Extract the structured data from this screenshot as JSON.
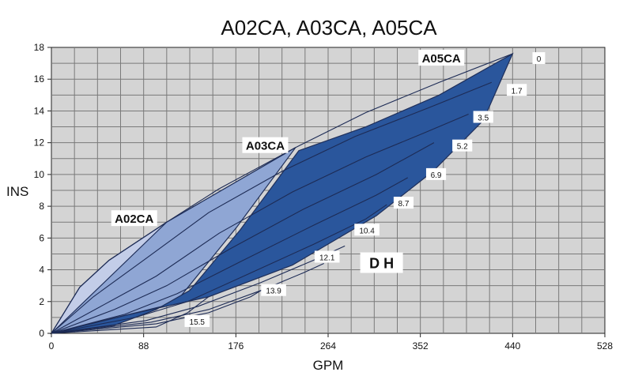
{
  "chart_data": {
    "type": "area",
    "title": "A02CA, A03CA, A05CA",
    "xlabel": "GPM",
    "ylabel": "INS",
    "xlim": [
      0,
      528
    ],
    "ylim": [
      0,
      18
    ],
    "x_ticks": [
      0,
      88,
      176,
      264,
      352,
      440,
      528
    ],
    "y_ticks": [
      0,
      2,
      4,
      6,
      8,
      10,
      12,
      14,
      16,
      18
    ],
    "grid": true,
    "regions": [
      {
        "name": "A02CA",
        "color": "#c3cde8",
        "outline": [
          [
            0,
            0
          ],
          [
            27,
            2.9
          ],
          [
            55,
            4.6
          ],
          [
            110,
            7
          ],
          [
            140,
            7
          ],
          [
            100,
            3.4
          ],
          [
            75,
            1.6
          ],
          [
            0,
            0
          ]
        ]
      },
      {
        "name": "A03CA",
        "color": "#8fa6d4",
        "outline": [
          [
            0,
            0
          ],
          [
            110,
            7
          ],
          [
            233,
            11.7
          ],
          [
            177,
            6.7
          ],
          [
            118,
            1.9
          ],
          [
            0,
            0
          ]
        ]
      },
      {
        "name": "A05CA",
        "color": "#2a569c",
        "outline": [
          [
            0,
            0
          ],
          [
            75,
            1.2
          ],
          [
            150,
            2.3
          ],
          [
            230,
            4.3
          ],
          [
            310,
            7.4
          ],
          [
            364,
            10.2
          ],
          [
            412,
            13.4
          ],
          [
            440,
            17.6
          ],
          [
            370,
            15
          ],
          [
            300,
            13
          ],
          [
            236,
            11.5
          ],
          [
            180,
            6.5
          ],
          [
            132,
            2.7
          ],
          [
            100,
            1.5
          ],
          [
            60,
            0.5
          ],
          [
            0,
            0
          ]
        ]
      }
    ],
    "dh_curves": [
      {
        "label": "0",
        "points": [
          [
            0,
            0
          ],
          [
            27,
            2.9
          ],
          [
            55,
            4.6
          ],
          [
            110,
            7
          ],
          [
            160,
            9.1
          ],
          [
            233,
            11.7
          ],
          [
            300,
            13.9
          ],
          [
            370,
            15.8
          ],
          [
            440,
            17.6
          ]
        ]
      },
      {
        "label": "1.7",
        "points": [
          [
            0,
            0
          ],
          [
            40,
            2.3
          ],
          [
            88,
            4.6
          ],
          [
            150,
            7.6
          ],
          [
            220,
            10.2
          ],
          [
            290,
            12.4
          ],
          [
            360,
            14.2
          ],
          [
            420,
            15.8
          ]
        ]
      },
      {
        "label": "3.5",
        "points": [
          [
            0,
            0
          ],
          [
            50,
            1.8
          ],
          [
            100,
            3.6
          ],
          [
            160,
            6.3
          ],
          [
            230,
            8.9
          ],
          [
            300,
            11.1
          ],
          [
            355,
            12.6
          ],
          [
            398,
            13.8
          ]
        ]
      },
      {
        "label": "5.2",
        "points": [
          [
            0,
            0
          ],
          [
            60,
            1.5
          ],
          [
            110,
            3
          ],
          [
            170,
            5.3
          ],
          [
            240,
            7.8
          ],
          [
            310,
            10
          ],
          [
            365,
            12
          ]
        ]
      },
      {
        "label": "6.9",
        "points": [
          [
            0,
            0
          ],
          [
            70,
            1.2
          ],
          [
            120,
            2.5
          ],
          [
            180,
            4.5
          ],
          [
            250,
            6.8
          ],
          [
            310,
            8.7
          ],
          [
            340,
            9.8
          ]
        ]
      },
      {
        "label": "8.7",
        "points": [
          [
            0,
            0
          ],
          [
            80,
            1
          ],
          [
            130,
            2
          ],
          [
            190,
            3.8
          ],
          [
            250,
            5.6
          ],
          [
            300,
            7.2
          ],
          [
            320,
            8.1
          ]
        ]
      },
      {
        "label": "10.4",
        "points": [
          [
            0,
            0
          ],
          [
            90,
            0.8
          ],
          [
            140,
            1.7
          ],
          [
            200,
            3.2
          ],
          [
            250,
            4.6
          ],
          [
            280,
            5.5
          ]
        ]
      },
      {
        "label": "12.1",
        "points": [
          [
            0,
            0
          ],
          [
            95,
            0.7
          ],
          [
            150,
            1.5
          ],
          [
            200,
            2.7
          ],
          [
            240,
            3.8
          ],
          [
            260,
            4.4
          ]
        ]
      },
      {
        "label": "13.9",
        "points": [
          [
            0,
            0
          ],
          [
            100,
            0.6
          ],
          [
            150,
            1.3
          ],
          [
            190,
            2.3
          ],
          [
            205,
            2.9
          ]
        ]
      },
      {
        "label": "15.5",
        "points": [
          [
            0,
            0
          ],
          [
            100,
            0.4
          ],
          [
            130,
            1.3
          ],
          [
            150,
            2.3
          ]
        ]
      }
    ],
    "curve_labels": [
      {
        "text": "0",
        "x": 465,
        "y": 17.3
      },
      {
        "text": "1.7",
        "x": 444,
        "y": 15.3
      },
      {
        "text": "3.5",
        "x": 412,
        "y": 13.6
      },
      {
        "text": "5.2",
        "x": 392,
        "y": 11.8
      },
      {
        "text": "6.9",
        "x": 367,
        "y": 10.0
      },
      {
        "text": "8.7",
        "x": 336,
        "y": 8.2
      },
      {
        "text": "10.4",
        "x": 301,
        "y": 6.5
      },
      {
        "text": "12.1",
        "x": 263,
        "y": 4.8
      },
      {
        "text": "13.9",
        "x": 212,
        "y": 2.7
      },
      {
        "text": "15.5",
        "x": 139,
        "y": 0.75
      }
    ],
    "annotations": [
      {
        "text": "A02CA",
        "x": 79,
        "y": 7.2,
        "kind": "model"
      },
      {
        "text": "A03CA",
        "x": 204,
        "y": 11.8,
        "kind": "model"
      },
      {
        "text": "A05CA",
        "x": 372,
        "y": 17.3,
        "kind": "model"
      },
      {
        "text": "D H",
        "x": 315,
        "y": 4.4,
        "kind": "dh"
      }
    ]
  }
}
